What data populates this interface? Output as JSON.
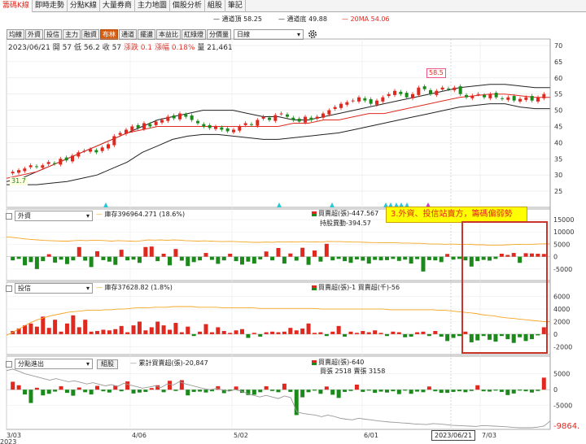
{
  "tabs": [
    {
      "label": "籌碼K線",
      "active": true
    },
    {
      "label": "即時走勢"
    },
    {
      "label": "分點K線"
    },
    {
      "label": "大量券商"
    },
    {
      "label": "主力地圖"
    },
    {
      "label": "個股分析"
    },
    {
      "label": "組股"
    },
    {
      "label": "筆記"
    }
  ],
  "legend": {
    "upper": "通道頂 58.25",
    "lower": "通道底 49.88",
    "ma": "20MA 54.06"
  },
  "toolbar": {
    "buttons": [
      "均線",
      "外資",
      "投信",
      "主力",
      "融資",
      "布林",
      "通道",
      "擺盪",
      "本益比",
      "紅綠燈",
      "分價量"
    ],
    "selected": "布林",
    "period": "日線",
    "settings_icon": "gear-icon"
  },
  "info": {
    "date": "2023/06/21",
    "open": "開 57",
    "low": "低 56.2",
    "close": "收 57",
    "change": "漲跌 0.1",
    "pct": "漲幅 0.18%",
    "vol": "量 21,461"
  },
  "price_axis": {
    "ticks": [
      "70",
      "65",
      "60",
      "55",
      "50",
      "45",
      "40",
      "35",
      "30",
      "25"
    ]
  },
  "labels": {
    "high": "58.5",
    "low": "31.7"
  },
  "panel1": {
    "select": "外資",
    "stock": "庫存396964.271 (18.6%)",
    "buy": "買賣超(張)-447.567",
    "change": "持股異動-394.57",
    "ticks": [
      "15000",
      "10000",
      "5000",
      "0",
      "-5000"
    ]
  },
  "panel2": {
    "select": "投信",
    "stock": "庫存37628.82 (1.8%)",
    "buy": "買賣超(張)-1 買賣超(千)-56",
    "ticks": [
      "6000",
      "4000",
      "2000",
      "0",
      "-2000"
    ]
  },
  "panel3": {
    "select": "分點進出",
    "button": "組股",
    "cum": "累計買賣超(張)-20,847",
    "buy": "買賣超(張)-640",
    "buy2": "買張 2518 賣張 3158",
    "ticks": [
      "5000",
      "0",
      "-5000"
    ],
    "last": "-9864."
  },
  "callout": "3.外資、投信站賣方，籌碼偏弱勢",
  "xaxis": {
    "ticks": [
      "3/03",
      "4/06",
      "5/02",
      "6/01",
      "7/03"
    ],
    "year": "2023",
    "current": "2023/06/21"
  },
  "colors": {
    "up": "#e0281e",
    "down": "#1b8a1b",
    "ma": "#e0281e",
    "band": "#222222",
    "stock_line": "#f5a623"
  },
  "chart_data": [
    {
      "type": "candlestick",
      "ylim": [
        20,
        72
      ],
      "close": [
        31,
        31.5,
        32,
        33,
        32.5,
        33,
        34,
        33.5,
        35,
        34.5,
        36,
        37,
        37.5,
        38,
        37,
        38.5,
        39.5,
        42,
        43,
        44,
        45,
        44.5,
        46,
        45,
        46.5,
        47,
        48,
        47.5,
        49,
        48,
        47,
        46,
        45,
        44.5,
        45,
        44,
        43.5,
        44,
        45,
        46,
        45.5,
        47,
        48,
        47,
        48.5,
        49,
        48,
        47,
        46.5,
        48,
        47,
        48,
        49,
        50,
        51,
        52,
        52.5,
        53,
        54,
        53,
        52,
        53,
        54,
        55,
        56,
        55,
        54,
        55,
        57,
        56.5,
        55,
        56,
        57,
        56.5,
        57,
        55,
        54,
        54.5,
        55,
        54,
        55,
        54,
        53.5,
        54,
        53,
        53.5,
        54,
        53,
        54,
        55
      ],
      "upper_band": [
        28,
        29,
        31,
        33,
        35,
        37,
        39,
        41,
        43,
        45,
        47,
        48,
        49,
        50,
        50,
        50,
        49,
        48,
        48,
        47,
        47,
        48,
        49,
        50,
        51,
        52,
        53,
        54,
        55,
        56,
        57,
        57.5,
        58,
        58,
        57.5,
        57,
        57
      ],
      "lower_band": [
        27,
        27,
        27,
        27.5,
        28,
        29,
        30,
        32,
        34,
        37,
        39,
        41,
        42,
        42.5,
        42.5,
        42,
        41.5,
        41,
        41,
        41.5,
        42,
        42.5,
        43,
        44,
        45,
        46,
        47,
        48,
        49,
        50,
        51,
        51.5,
        52,
        52,
        51,
        50.5,
        50.5
      ],
      "ma20": [
        29,
        30,
        31,
        33,
        35,
        37,
        39,
        41,
        43,
        44,
        45,
        45,
        45,
        45,
        45,
        45,
        45,
        45,
        45,
        46,
        46,
        47,
        47,
        48,
        49,
        49,
        50,
        51,
        52,
        53,
        54,
        54.5,
        55,
        55,
        54.5,
        54,
        54
      ]
    },
    {
      "type": "bar",
      "series": "外資",
      "ylim": [
        -9000,
        16000
      ],
      "values": [
        -1500,
        -900,
        -3500,
        -2200,
        -5000,
        -1800,
        1000,
        -2400,
        -1200,
        -3000,
        -1500,
        3900,
        -1600,
        -4200,
        2200,
        -1400,
        -2000,
        -3300,
        2800,
        -1500,
        -1200,
        -2500,
        3900,
        4100,
        -1800,
        1200,
        -3500,
        3100,
        -1600,
        -3800,
        -2200,
        -1500,
        1500,
        -1300,
        -2900,
        -1500,
        1200,
        -1800,
        -3200,
        -2000,
        -2800,
        -1100,
        2100,
        -1500,
        3500,
        -2800,
        1300,
        -1600,
        3600,
        -3300,
        2500,
        -2000,
        5200,
        -1500,
        -900,
        -1800,
        -2500,
        -1100,
        -1600,
        -2800,
        -1300,
        -1500,
        -1400,
        -900,
        -1700,
        -1200,
        -2800,
        -1000,
        -6000,
        -1400,
        -1500,
        -2200,
        1100,
        -1200,
        -900,
        -1500,
        -4000,
        -1800,
        -1300,
        -1600,
        -900,
        1200,
        700,
        1500,
        -2500,
        1400,
        1300,
        1200,
        1100
      ],
      "stock": [
        8000,
        7800,
        7500,
        7200,
        7000,
        6800,
        6600,
        6500,
        6400,
        6300,
        6300,
        6500,
        6600,
        6500,
        6700,
        6600,
        6500,
        6300,
        6500,
        6400,
        6300,
        6200,
        6500,
        6800,
        6700,
        6800,
        6600,
        6800,
        6700,
        6500,
        6400,
        6300,
        6400,
        6300,
        6200,
        6100,
        6200,
        6100,
        6000,
        5900,
        5800,
        5800,
        5900,
        5800,
        6000,
        5900,
        6000,
        5900,
        6100,
        5900,
        6000,
        5900,
        6200,
        6100,
        6100,
        6000,
        5900,
        5900,
        5800,
        5700,
        5700,
        5600,
        5600,
        5600,
        5500,
        5500,
        5400,
        5400,
        5200,
        5100,
        5100,
        5000,
        5100,
        5000,
        5000,
        5000,
        4800,
        4800,
        4700,
        4700,
        4700,
        4800,
        4900,
        5000,
        4900,
        5000,
        5100,
        5200,
        5100
      ]
    },
    {
      "type": "bar",
      "series": "投信",
      "ylim": [
        -3000,
        7000
      ],
      "values": [
        500,
        900,
        1400,
        1700,
        1200,
        2800,
        1000,
        2300,
        400,
        1700,
        3000,
        1100,
        2300,
        400,
        500,
        700,
        600,
        800,
        1300,
        300,
        1400,
        2000,
        600,
        1100,
        2000,
        1400,
        700,
        1800,
        300,
        1200,
        -300,
        400,
        1600,
        300,
        1100,
        500,
        200,
        600,
        800,
        -600,
        200,
        -400,
        300,
        400,
        300,
        400,
        1000,
        600,
        900,
        1700,
        200,
        300,
        -300,
        400,
        1300,
        -400,
        400,
        200,
        500,
        300,
        600,
        200,
        -300,
        400,
        300,
        -500,
        -400,
        300,
        400,
        -300,
        500,
        -400,
        -1100,
        -600,
        -300,
        400,
        -1300,
        -1000,
        -300,
        -900,
        -1200,
        -300,
        -800,
        -1400,
        -500,
        -1100,
        -800,
        -200,
        1100
      ],
      "stock": [
        -200,
        300,
        800,
        1400,
        1900,
        2300,
        2600,
        2900,
        3100,
        3300,
        3500,
        3600,
        3700,
        3800,
        3800,
        3800,
        3900,
        3900,
        4000,
        4000,
        4100,
        4200,
        4200,
        4200,
        4300,
        4300,
        4300,
        4400,
        4400,
        4400,
        4400,
        4300,
        4300,
        4300,
        4300,
        4200,
        4200,
        4200,
        4200,
        4200,
        4200,
        4100,
        4100,
        4100,
        4100,
        4100,
        4100,
        4100,
        4100,
        4100,
        4100,
        4000,
        4000,
        4000,
        4000,
        4000,
        4000,
        4000,
        4000,
        4000,
        4000,
        4000,
        3900,
        3900,
        3900,
        3900,
        3900,
        3900,
        3900,
        3900,
        3800,
        3800,
        3700,
        3600,
        3500,
        3400,
        3300,
        3100,
        3000,
        2900,
        2700,
        2600,
        2500,
        2400,
        2300,
        2200,
        2100,
        2000,
        2000
      ]
    },
    {
      "type": "bar",
      "series": "分點進出",
      "ylim": [
        -12000,
        8000
      ],
      "values": [
        2500,
        1400,
        -1500,
        -4200,
        600,
        -1800,
        -1300,
        -600,
        1100,
        -1000,
        -1900,
        700,
        -800,
        -1500,
        1200,
        -500,
        -900,
        1300,
        -500,
        2600,
        -1200,
        -900,
        -700,
        500,
        1400,
        -800,
        2800,
        -400,
        3000,
        -1800,
        -700,
        -600,
        -900,
        -500,
        1100,
        -1100,
        -400,
        1000,
        -1000,
        -1700,
        -1600,
        -800,
        1100,
        -400,
        -800,
        1900,
        -700,
        -8000,
        -2400,
        -800,
        -300,
        -1300,
        1000,
        -1600,
        -2600,
        -700,
        -400,
        1600,
        -700,
        -300,
        -1000,
        -600,
        -900,
        -500,
        -1400,
        -300,
        -1300,
        -600,
        -800,
        1000,
        -500,
        -1000,
        -1000,
        -700,
        -500,
        -800,
        -400,
        1400,
        -500,
        -600,
        -300,
        -700,
        -1700,
        -1200,
        -300,
        -500,
        -900,
        -400,
        3800
      ],
      "cumulative": [
        6000,
        6500,
        5800,
        5000,
        4500,
        4000,
        3500,
        3000,
        3500,
        3000,
        2500,
        2800,
        2300,
        1800,
        2200,
        1700,
        1200,
        1600,
        1000,
        2000,
        1500,
        1000,
        500,
        800,
        1200,
        700,
        1800,
        1500,
        2500,
        1800,
        1300,
        800,
        300,
        0,
        400,
        -100,
        -500,
        0,
        -500,
        -1200,
        -1800,
        -2300,
        -1800,
        -2300,
        -2800,
        -2000,
        -2500,
        -7000,
        -7500,
        -7800,
        -8000,
        -8500,
        -8000,
        -8400,
        -9000,
        -9300,
        -9500,
        -9000,
        -9300,
        -9500,
        -9800,
        -10000,
        -10200,
        -10300,
        -10500,
        -10600,
        -10800,
        -10900,
        -11000,
        -10700,
        -10800,
        -11000,
        -11200,
        -11300,
        -11400,
        -11500,
        -11600,
        -11300,
        -11400,
        -11500,
        -11600,
        -11700,
        -11900,
        -12000,
        -12000,
        -12000,
        -11800,
        -11500,
        -9864
      ]
    }
  ]
}
